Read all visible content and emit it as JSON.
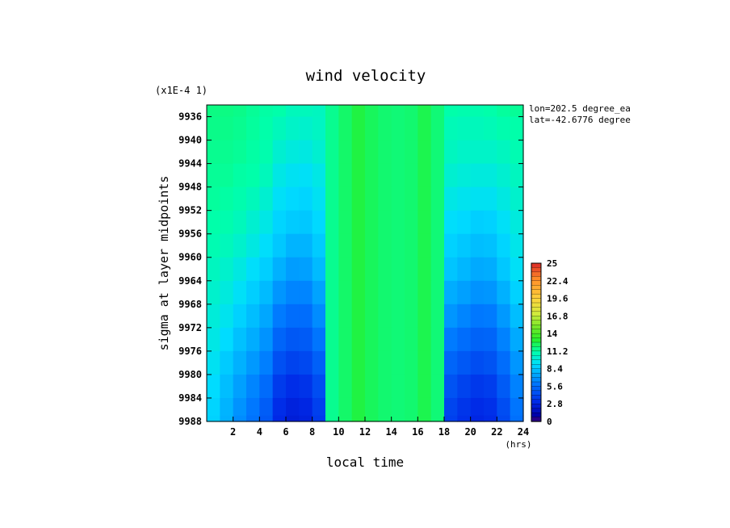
{
  "chart_data": {
    "type": "heatmap",
    "title": "wind velocity",
    "xlabel": "local time",
    "xunits": "(hrs)",
    "ylabel": "sigma at layer midpoints",
    "yscale_note": "(x1E-4 1)",
    "annotations": [
      "lon=202.5 degree_ea",
      "lat=-42.6776 degree"
    ],
    "xlim": [
      0,
      24
    ],
    "ylim": [
      9934,
      9988
    ],
    "xticks": [
      2,
      4,
      6,
      8,
      10,
      12,
      14,
      16,
      18,
      20,
      22,
      24
    ],
    "yticks": [
      9936,
      9940,
      9944,
      9948,
      9952,
      9956,
      9960,
      9964,
      9968,
      9972,
      9976,
      9980,
      9984,
      9988
    ],
    "colorbar": {
      "min": 0,
      "max": 25,
      "tick_labels": [
        "25",
        "22.4",
        "19.6",
        "16.8",
        "14",
        "11.2",
        "8.4",
        "5.6",
        "2.8",
        "0"
      ]
    },
    "x": [
      0.5,
      1.5,
      2.5,
      3.5,
      4.5,
      5.5,
      6.5,
      7.5,
      8.5,
      9.5,
      10.5,
      11.5,
      12.5,
      13.5,
      14.5,
      15.5,
      16.5,
      17.5,
      18.5,
      19.5,
      20.5,
      21.5,
      22.5,
      23.5
    ],
    "y": [
      9934,
      9938,
      9942,
      9946,
      9950,
      9954,
      9958,
      9962,
      9966,
      9970,
      9974,
      9978,
      9982,
      9986,
      9988
    ],
    "z": [
      [
        11.6,
        11.6,
        11.5,
        11.3,
        11.1,
        11.0,
        10.6,
        10.6,
        10.5,
        11.4,
        12.0,
        12.6,
        12.2,
        11.9,
        11.8,
        11.9,
        12.4,
        11.8,
        11.0,
        10.9,
        10.9,
        11.0,
        11.2,
        11.3
      ],
      [
        11.5,
        11.5,
        11.4,
        11.2,
        11.0,
        10.6,
        10.3,
        10.2,
        10.4,
        11.4,
        12.0,
        12.6,
        12.2,
        11.9,
        11.8,
        11.9,
        12.4,
        11.8,
        10.7,
        10.6,
        10.6,
        10.7,
        10.9,
        11.0
      ],
      [
        11.4,
        11.4,
        11.3,
        11.1,
        10.9,
        10.1,
        9.8,
        9.7,
        10.1,
        11.4,
        12.0,
        12.6,
        12.2,
        11.9,
        11.8,
        11.9,
        12.4,
        11.8,
        10.5,
        10.3,
        10.3,
        10.3,
        10.5,
        10.8
      ],
      [
        11.3,
        11.3,
        11.1,
        11.0,
        10.6,
        9.6,
        9.3,
        9.2,
        9.6,
        11.4,
        12.0,
        12.6,
        12.2,
        11.9,
        11.8,
        11.9,
        12.4,
        11.8,
        10.1,
        9.9,
        9.8,
        9.8,
        10.1,
        10.5
      ],
      [
        11.2,
        11.1,
        10.9,
        10.6,
        10.1,
        9.2,
        8.9,
        8.8,
        9.3,
        11.4,
        12.0,
        12.6,
        12.2,
        11.9,
        11.8,
        11.9,
        12.4,
        11.8,
        9.6,
        9.4,
        9.3,
        9.3,
        9.7,
        10.2
      ],
      [
        11.0,
        10.9,
        10.6,
        10.1,
        9.6,
        8.8,
        8.5,
        8.4,
        8.9,
        11.4,
        12.0,
        12.6,
        12.2,
        11.9,
        11.8,
        11.9,
        12.4,
        11.8,
        9.1,
        8.9,
        8.6,
        8.7,
        9.2,
        9.8
      ],
      [
        10.8,
        10.6,
        10.2,
        9.7,
        9.1,
        8.4,
        7.8,
        7.8,
        8.5,
        11.4,
        12.0,
        12.6,
        12.2,
        11.9,
        11.8,
        11.9,
        12.4,
        11.8,
        8.7,
        8.4,
        8.1,
        8.2,
        8.8,
        9.5
      ],
      [
        10.5,
        10.2,
        9.7,
        9.1,
        8.6,
        7.7,
        7.1,
        7.2,
        8.0,
        11.4,
        12.0,
        12.6,
        12.2,
        11.9,
        11.8,
        11.9,
        12.4,
        11.8,
        8.3,
        7.9,
        7.5,
        7.6,
        8.4,
        9.2
      ],
      [
        10.2,
        9.8,
        9.2,
        8.6,
        8.0,
        6.9,
        6.4,
        6.4,
        7.3,
        11.4,
        12.0,
        12.6,
        12.2,
        11.9,
        11.8,
        11.9,
        12.4,
        11.8,
        7.6,
        7.2,
        6.8,
        6.9,
        7.7,
        8.7
      ],
      [
        9.9,
        9.4,
        8.7,
        8.1,
        7.4,
        6.1,
        5.6,
        5.6,
        6.6,
        11.4,
        12.0,
        12.6,
        12.2,
        11.9,
        11.8,
        11.9,
        12.4,
        11.8,
        6.9,
        6.4,
        6.0,
        6.1,
        7.0,
        8.1
      ],
      [
        9.6,
        9.0,
        8.2,
        7.6,
        6.8,
        5.3,
        4.8,
        4.9,
        5.9,
        11.4,
        12.0,
        12.6,
        12.2,
        11.9,
        11.8,
        11.9,
        12.4,
        11.8,
        6.1,
        5.6,
        5.2,
        5.3,
        6.3,
        7.5
      ],
      [
        9.3,
        8.5,
        7.7,
        7.0,
        6.2,
        4.5,
        4.0,
        4.2,
        5.1,
        11.4,
        12.0,
        12.6,
        12.2,
        11.9,
        11.8,
        11.9,
        12.4,
        11.8,
        5.3,
        4.8,
        4.4,
        4.6,
        5.6,
        6.9
      ],
      [
        9.0,
        8.1,
        7.2,
        6.4,
        5.5,
        3.7,
        3.2,
        3.4,
        4.4,
        11.4,
        12.0,
        12.6,
        12.2,
        11.9,
        11.8,
        11.9,
        12.4,
        11.8,
        4.6,
        4.0,
        3.6,
        3.8,
        4.9,
        6.3
      ],
      [
        8.8,
        7.8,
        6.8,
        6.0,
        5.0,
        3.2,
        2.7,
        2.9,
        3.9,
        11.4,
        12.0,
        12.6,
        12.2,
        11.9,
        11.8,
        11.9,
        12.4,
        11.8,
        4.1,
        3.5,
        3.1,
        3.3,
        4.4,
        5.9
      ],
      [
        8.7,
        7.7,
        6.6,
        5.8,
        4.8,
        3.0,
        2.5,
        2.7,
        3.7,
        11.4,
        12.0,
        12.6,
        12.2,
        11.9,
        11.8,
        11.9,
        12.4,
        11.8,
        3.9,
        3.3,
        2.9,
        3.1,
        4.2,
        5.7
      ]
    ]
  }
}
